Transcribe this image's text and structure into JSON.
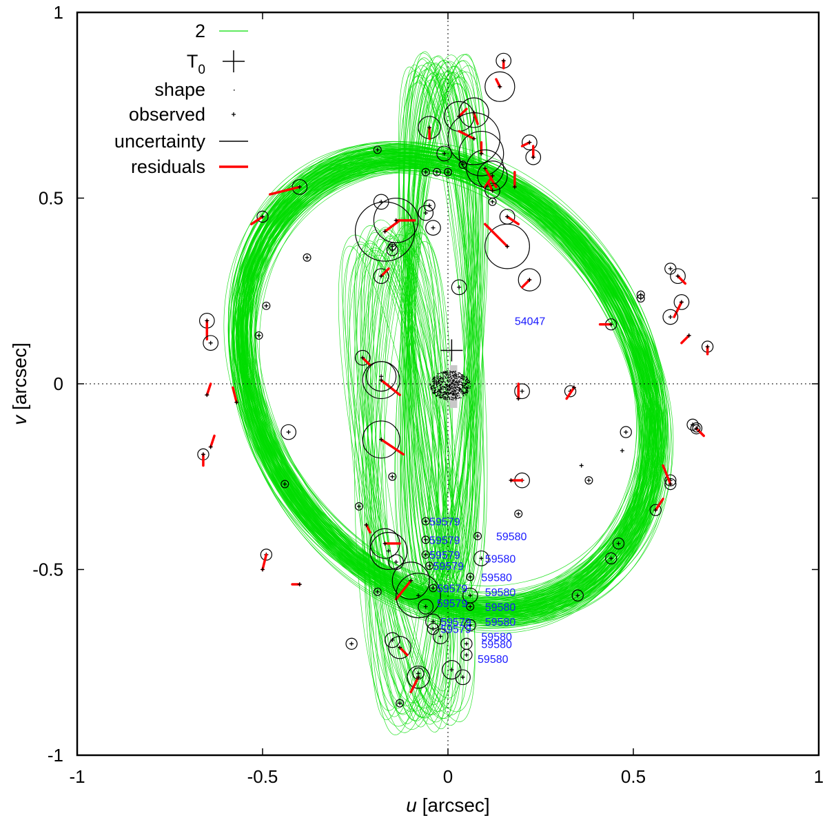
{
  "chart_data": {
    "type": "scatter",
    "xlabel_var": "u",
    "xlabel_unit": "[arcsec]",
    "ylabel_var": "v",
    "ylabel_unit": "[arcsec]",
    "xlim": [
      -1,
      1
    ],
    "ylim": [
      -1,
      1
    ],
    "xticks": [
      "-1",
      "-0.5",
      "0",
      "0.5",
      "1"
    ],
    "yticks": [
      "-1",
      "-0.5",
      "0",
      "0.5",
      "1"
    ],
    "legend_position": "top-left",
    "legend": [
      {
        "label": "2",
        "kind": "orbit"
      },
      {
        "label": "T",
        "sub": "0",
        "kind": "t0"
      },
      {
        "label": "shape",
        "kind": "shape"
      },
      {
        "label": "observed",
        "kind": "observed"
      },
      {
        "label": "uncertainty",
        "kind": "uncertainty"
      },
      {
        "label": "residuals",
        "kind": "residuals"
      }
    ],
    "colors": {
      "orbit": "#00dd00",
      "residuals": "#ff0000",
      "uncertainty": "#000000",
      "epoch": "#1a1aff"
    },
    "t0": {
      "u": 0.01,
      "v": 0.09
    },
    "observations": [
      [
        0.15,
        0.87,
        0.02,
        0.0,
        -0.02
      ],
      [
        0.14,
        0.8,
        0.04,
        -0.01,
        0.02
      ],
      [
        0.03,
        0.72,
        0.04,
        0.02,
        0.02
      ],
      [
        0.07,
        0.73,
        0.04,
        0.01,
        -0.03
      ],
      [
        -0.05,
        0.69,
        0.03,
        0.0,
        -0.03
      ],
      [
        0.07,
        0.66,
        0.07,
        -0.04,
        0.02
      ],
      [
        0.09,
        0.62,
        0.06,
        0.0,
        0.03
      ],
      [
        0.1,
        0.58,
        0.05,
        0.03,
        -0.05
      ],
      [
        0.12,
        0.56,
        0.04,
        -0.02,
        -0.03
      ],
      [
        0.12,
        0.52,
        0.02,
        -0.01,
        0.02
      ],
      [
        -0.01,
        0.62,
        0.02,
        0.0,
        0.0
      ],
      [
        0.22,
        0.65,
        0.02,
        -0.02,
        -0.01
      ],
      [
        0.23,
        0.61,
        0.02,
        0.0,
        0.03
      ],
      [
        -0.19,
        0.63,
        0.01,
        0.0,
        0.0
      ],
      [
        -0.06,
        0.57,
        0.01,
        0.0,
        0.0
      ],
      [
        -0.03,
        0.57,
        0.01,
        0.0,
        0.0
      ],
      [
        0.0,
        0.57,
        0.01,
        0.0,
        0.0
      ],
      [
        0.04,
        0.59,
        0.01,
        0.0,
        0.0
      ],
      [
        -0.4,
        0.53,
        0.02,
        -0.08,
        -0.02
      ],
      [
        -0.5,
        0.45,
        0.015,
        -0.03,
        -0.02
      ],
      [
        -0.18,
        0.49,
        0.02,
        0.0,
        0.0
      ],
      [
        -0.17,
        0.41,
        0.08,
        0.04,
        0.03
      ],
      [
        -0.14,
        0.44,
        0.06,
        0.05,
        0.0
      ],
      [
        -0.06,
        0.46,
        0.02,
        0.0,
        0.0
      ],
      [
        -0.05,
        0.48,
        0.015,
        0.0,
        0.0
      ],
      [
        -0.04,
        0.42,
        0.02,
        0.0,
        0.0
      ],
      [
        0.12,
        0.49,
        0.01,
        0.0,
        0.0
      ],
      [
        0.16,
        0.45,
        0.02,
        0.03,
        -0.02
      ],
      [
        0.18,
        0.53,
        0.0,
        0.0,
        0.04
      ],
      [
        0.16,
        0.37,
        0.06,
        -0.06,
        0.06
      ],
      [
        -0.15,
        0.36,
        0.015,
        0.0,
        0.0
      ],
      [
        -0.15,
        0.37,
        0.01,
        0.0,
        0.0
      ],
      [
        -0.38,
        0.34,
        0.01,
        0.0,
        0.0
      ],
      [
        -0.18,
        0.29,
        0.02,
        0.02,
        0.02
      ],
      [
        0.03,
        0.26,
        0.02,
        0.0,
        0.0
      ],
      [
        0.22,
        0.28,
        0.03,
        -0.02,
        -0.02
      ],
      [
        -0.49,
        0.21,
        0.01,
        0.0,
        0.0
      ],
      [
        -0.51,
        0.13,
        0.01,
        0.0,
        0.0
      ],
      [
        -0.65,
        0.17,
        0.02,
        0.0,
        -0.05
      ],
      [
        -0.64,
        0.11,
        0.02,
        0.0,
        0.0
      ],
      [
        -0.23,
        0.07,
        0.02,
        0.02,
        -0.02
      ],
      [
        -0.18,
        0.01,
        0.05,
        0.05,
        -0.04
      ],
      [
        -0.18,
        0.02,
        0.04,
        0.0,
        0.0
      ],
      [
        -0.18,
        -0.15,
        0.05,
        0.06,
        -0.04
      ],
      [
        -0.15,
        -0.25,
        0.01,
        0.0,
        0.0
      ],
      [
        -0.65,
        -0.03,
        0.0,
        0.01,
        0.03
      ],
      [
        -0.57,
        -0.05,
        0.0,
        -0.01,
        0.04
      ],
      [
        -0.43,
        -0.13,
        0.02,
        0.0,
        0.0
      ],
      [
        -0.66,
        -0.19,
        0.015,
        0.0,
        -0.03
      ],
      [
        -0.64,
        -0.17,
        0.0,
        0.01,
        0.03
      ],
      [
        -0.44,
        -0.27,
        0.01,
        0.0,
        0.0
      ],
      [
        0.2,
        -0.02,
        0.02,
        0.0,
        0.0
      ],
      [
        0.19,
        -0.04,
        0.0,
        0.0,
        0.04
      ],
      [
        0.33,
        -0.02,
        0.015,
        0.0,
        0.0
      ],
      [
        0.34,
        -0.01,
        0.0,
        -0.02,
        -0.03
      ],
      [
        0.2,
        -0.26,
        0.02,
        0.0,
        0.0
      ],
      [
        0.17,
        -0.26,
        0.0,
        0.03,
        0.0
      ],
      [
        0.38,
        -0.26,
        0.01,
        0.0,
        0.0
      ],
      [
        0.36,
        -0.22,
        0.0,
        0.0,
        0.0
      ],
      [
        0.19,
        -0.35,
        0.01,
        0.0,
        0.0
      ],
      [
        0.44,
        0.16,
        0.015,
        -0.03,
        0.0
      ],
      [
        0.52,
        0.24,
        0.01,
        0.0,
        0.0
      ],
      [
        0.52,
        0.23,
        0.01,
        0.0,
        0.0
      ],
      [
        0.6,
        0.31,
        0.015,
        0.0,
        0.0
      ],
      [
        0.62,
        0.29,
        0.02,
        0.02,
        -0.02
      ],
      [
        0.63,
        0.22,
        0.02,
        -0.02,
        -0.04
      ],
      [
        0.6,
        0.18,
        0.02,
        0.0,
        0.0
      ],
      [
        0.65,
        0.13,
        0.0,
        -0.02,
        -0.02
      ],
      [
        0.7,
        0.1,
        0.015,
        0.0,
        -0.02
      ],
      [
        0.66,
        -0.11,
        0.015,
        0.0,
        0.0
      ],
      [
        0.67,
        -0.12,
        0.015,
        0.02,
        -0.02
      ],
      [
        0.67,
        -0.12,
        0.01,
        0.0,
        0.0
      ],
      [
        0.48,
        -0.13,
        0.015,
        0.0,
        0.0
      ],
      [
        0.47,
        -0.18,
        0.0,
        0.0,
        0.0
      ],
      [
        0.6,
        -0.26,
        0.015,
        0.0,
        0.0
      ],
      [
        0.6,
        -0.27,
        0.015,
        -0.02,
        0.05
      ],
      [
        0.56,
        -0.34,
        0.015,
        0.02,
        0.03
      ],
      [
        0.46,
        -0.43,
        0.015,
        0.0,
        0.0
      ],
      [
        0.44,
        -0.47,
        0.015,
        0.0,
        0.0
      ],
      [
        0.35,
        -0.57,
        0.015,
        0.0,
        0.0
      ],
      [
        -0.49,
        -0.46,
        0.015,
        0.0,
        0.0
      ],
      [
        -0.5,
        -0.5,
        0.0,
        0.01,
        0.04
      ],
      [
        -0.4,
        -0.54,
        0.0,
        -0.02,
        0.0
      ],
      [
        -0.24,
        -0.33,
        0.01,
        0.0,
        0.0
      ],
      [
        -0.22,
        -0.38,
        0.0,
        0.01,
        -0.02
      ],
      [
        -0.17,
        -0.43,
        0.04,
        0.04,
        0.0
      ],
      [
        -0.16,
        -0.45,
        0.05,
        0.0,
        0.0
      ],
      [
        -0.14,
        -0.48,
        0.02,
        0.0,
        0.0
      ],
      [
        -0.1,
        -0.53,
        0.05,
        -0.04,
        -0.05
      ],
      [
        -0.08,
        -0.57,
        0.06,
        0.0,
        0.0
      ],
      [
        -0.19,
        -0.56,
        0.01,
        0.0,
        0.0
      ],
      [
        -0.06,
        -0.37,
        0.01,
        0.0,
        0.0
      ],
      [
        -0.06,
        -0.42,
        0.01,
        0.0,
        0.0
      ],
      [
        -0.06,
        -0.46,
        0.01,
        0.0,
        0.0
      ],
      [
        -0.05,
        -0.49,
        0.01,
        0.0,
        0.0
      ],
      [
        -0.04,
        -0.55,
        0.01,
        0.0,
        0.0
      ],
      [
        -0.06,
        -0.6,
        0.02,
        0.0,
        0.0
      ],
      [
        -0.04,
        -0.64,
        0.02,
        0.0,
        0.0
      ],
      [
        -0.04,
        -0.66,
        0.015,
        0.0,
        0.0
      ],
      [
        -0.02,
        -0.68,
        0.02,
        0.0,
        0.0
      ],
      [
        0.08,
        -0.41,
        0.01,
        0.0,
        0.0
      ],
      [
        0.09,
        -0.47,
        0.02,
        0.0,
        0.0
      ],
      [
        0.06,
        -0.52,
        0.01,
        0.0,
        0.0
      ],
      [
        0.06,
        -0.57,
        0.02,
        0.0,
        0.0
      ],
      [
        0.06,
        -0.6,
        0.01,
        0.0,
        0.0
      ],
      [
        0.06,
        -0.65,
        0.015,
        0.0,
        0.0
      ],
      [
        0.05,
        -0.7,
        0.015,
        0.0,
        0.0
      ],
      [
        0.05,
        -0.73,
        0.015,
        0.0,
        0.0
      ],
      [
        0.01,
        -0.77,
        0.025,
        0.0,
        0.0
      ],
      [
        0.04,
        -0.79,
        0.02,
        0.0,
        0.0
      ],
      [
        -0.26,
        -0.7,
        0.015,
        0.0,
        0.0
      ],
      [
        -0.15,
        -0.69,
        0.02,
        0.0,
        0.0
      ],
      [
        -0.13,
        -0.71,
        0.03,
        0.02,
        -0.02
      ],
      [
        -0.08,
        -0.79,
        0.03,
        -0.02,
        -0.04
      ],
      [
        -0.08,
        -0.78,
        0.015,
        0.0,
        0.0
      ],
      [
        -0.13,
        -0.86,
        0.01,
        0.0,
        0.0
      ]
    ],
    "epoch_labels": [
      {
        "text": "54047",
        "u": 0.18,
        "v": 0.17
      },
      {
        "text": "59579",
        "u": -0.05,
        "v": -0.37
      },
      {
        "text": "59579",
        "u": -0.05,
        "v": -0.42
      },
      {
        "text": "59580",
        "u": 0.13,
        "v": -0.41
      },
      {
        "text": "59579",
        "u": -0.05,
        "v": -0.46
      },
      {
        "text": "59580",
        "u": 0.1,
        "v": -0.47
      },
      {
        "text": "59579",
        "u": -0.04,
        "v": -0.49
      },
      {
        "text": "59580",
        "u": 0.09,
        "v": -0.52
      },
      {
        "text": "59579",
        "u": -0.03,
        "v": -0.55
      },
      {
        "text": "59580",
        "u": 0.1,
        "v": -0.56
      },
      {
        "text": "59579",
        "u": -0.03,
        "v": -0.59
      },
      {
        "text": "59580",
        "u": 0.1,
        "v": -0.6
      },
      {
        "text": "59579",
        "u": -0.02,
        "v": -0.64
      },
      {
        "text": "59580",
        "u": 0.1,
        "v": -0.64
      },
      {
        "text": "59579",
        "u": -0.02,
        "v": -0.66
      },
      {
        "text": "59580",
        "u": 0.09,
        "v": -0.68
      },
      {
        "text": "59580",
        "u": 0.09,
        "v": -0.7
      },
      {
        "text": "59580",
        "u": 0.08,
        "v": -0.74
      }
    ]
  }
}
